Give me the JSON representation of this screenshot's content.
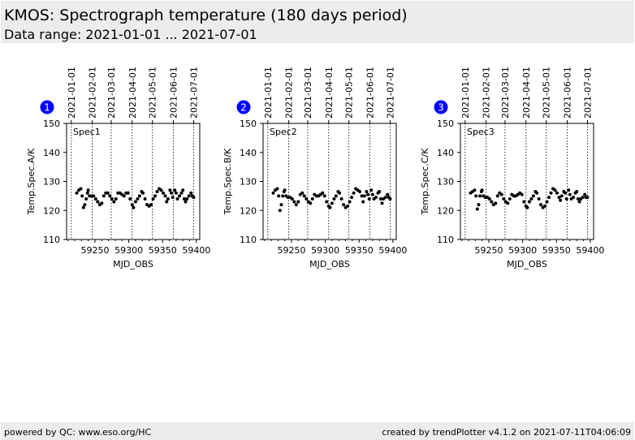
{
  "header": {
    "title": "KMOS: Spectrograph temperature (180 days period)",
    "subtitle": "Data range: 2021-01-01 ... 2021-07-01"
  },
  "footer": {
    "left": "powered by QC: www.eso.org/HC",
    "right": "created by trendPlotter v4.1.2 on 2021-07-11T04:06:09"
  },
  "colors": {
    "badge": "#0000ff",
    "points": "#000000"
  },
  "chart_data": [
    {
      "type": "scatter",
      "badge": "1",
      "label": "Spec1",
      "ylabel": "Temp.Spec.A/K",
      "xlabel": "MJD_OBS",
      "xlim": [
        59208,
        59405
      ],
      "ylim": [
        110,
        150
      ],
      "yticks": [
        110,
        120,
        130,
        140,
        150
      ],
      "xticks": [
        59250,
        59300,
        59350,
        59400
      ],
      "date_ticks": [
        {
          "mjd": 59215,
          "label": "2021-01-01"
        },
        {
          "mjd": 59246,
          "label": "2021-02-01"
        },
        {
          "mjd": 59274,
          "label": "2021-03-01"
        },
        {
          "mjd": 59305,
          "label": "2021-04-01"
        },
        {
          "mjd": 59335,
          "label": "2021-05-01"
        },
        {
          "mjd": 59366,
          "label": "2021-06-01"
        },
        {
          "mjd": 59396,
          "label": "2021-07-01"
        }
      ],
      "x": [
        59223,
        59226,
        59229,
        59231,
        59233,
        59235,
        59237,
        59239,
        59240,
        59242,
        59245,
        59248,
        59251,
        59254,
        59257,
        59260,
        59263,
        59266,
        59269,
        59272,
        59275,
        59278,
        59281,
        59284,
        59287,
        59290,
        59293,
        59296,
        59299,
        59302,
        59305,
        59307,
        59310,
        59313,
        59316,
        59319,
        59321,
        59324,
        59327,
        59330,
        59333,
        59336,
        59339,
        59342,
        59345,
        59348,
        59351,
        59354,
        59356,
        59358,
        59361,
        59363,
        59365,
        59368,
        59370,
        59372,
        59375,
        59378,
        59380,
        59382,
        59384,
        59386,
        59389,
        59392,
        59394,
        59396
      ],
      "y": [
        126,
        127,
        127.5,
        125,
        121,
        122,
        124,
        126,
        127,
        125,
        125,
        125,
        124,
        123,
        122,
        122.5,
        125,
        126,
        126,
        125,
        124,
        123,
        124,
        126,
        126,
        125.5,
        125,
        126,
        126,
        124,
        122,
        121,
        123,
        124,
        125,
        126.5,
        126,
        124,
        122,
        121.5,
        122,
        124,
        125,
        126.5,
        127.5,
        127,
        126,
        125,
        123,
        124,
        127,
        126,
        124.5,
        127,
        126,
        124,
        125,
        126,
        127,
        124,
        123,
        124,
        125,
        126,
        125,
        124.5
      ]
    },
    {
      "type": "scatter",
      "badge": "2",
      "label": "Spec2",
      "ylabel": "Temp.Spec.B/K",
      "xlabel": "MJD_OBS",
      "xlim": [
        59208,
        59405
      ],
      "ylim": [
        110,
        150
      ],
      "yticks": [
        110,
        120,
        130,
        140,
        150
      ],
      "xticks": [
        59250,
        59300,
        59350,
        59400
      ],
      "date_ticks": [
        {
          "mjd": 59215,
          "label": "2021-01-01"
        },
        {
          "mjd": 59246,
          "label": "2021-02-01"
        },
        {
          "mjd": 59274,
          "label": "2021-03-01"
        },
        {
          "mjd": 59305,
          "label": "2021-04-01"
        },
        {
          "mjd": 59335,
          "label": "2021-05-01"
        },
        {
          "mjd": 59366,
          "label": "2021-06-01"
        },
        {
          "mjd": 59396,
          "label": "2021-07-01"
        }
      ],
      "x": [
        59223,
        59226,
        59229,
        59231,
        59233,
        59235,
        59237,
        59239,
        59240,
        59242,
        59245,
        59248,
        59251,
        59254,
        59257,
        59260,
        59263,
        59266,
        59269,
        59272,
        59275,
        59278,
        59281,
        59284,
        59287,
        59290,
        59293,
        59296,
        59299,
        59302,
        59305,
        59307,
        59310,
        59313,
        59316,
        59319,
        59321,
        59324,
        59327,
        59330,
        59333,
        59336,
        59339,
        59342,
        59345,
        59348,
        59351,
        59354,
        59356,
        59358,
        59361,
        59363,
        59365,
        59368,
        59370,
        59372,
        59375,
        59378,
        59380,
        59382,
        59384,
        59386,
        59389,
        59392,
        59394,
        59396
      ],
      "y": [
        126,
        127,
        127.5,
        125,
        120,
        122,
        125,
        126.5,
        127,
        125,
        124.5,
        124.5,
        124,
        123,
        122,
        123,
        125.5,
        126,
        125,
        124,
        123,
        122.5,
        124,
        125.5,
        125,
        125,
        125.5,
        126,
        125,
        123,
        121.5,
        121,
        122.5,
        124,
        125,
        126.5,
        126,
        124,
        122,
        121,
        121.5,
        123,
        124.5,
        126,
        127.5,
        127,
        126.5,
        125,
        123,
        125,
        126.5,
        125.5,
        124,
        127,
        125.5,
        124,
        124.5,
        126,
        126.5,
        124,
        122.5,
        124,
        124.5,
        125.5,
        124.5,
        124
      ]
    },
    {
      "type": "scatter",
      "badge": "3",
      "label": "Spec3",
      "ylabel": "Temp.Spec.C/K",
      "xlabel": "MJD_OBS",
      "xlim": [
        59208,
        59405
      ],
      "ylim": [
        110,
        150
      ],
      "yticks": [
        110,
        120,
        130,
        140,
        150
      ],
      "xticks": [
        59250,
        59300,
        59350,
        59400
      ],
      "date_ticks": [
        {
          "mjd": 59215,
          "label": "2021-01-01"
        },
        {
          "mjd": 59246,
          "label": "2021-02-01"
        },
        {
          "mjd": 59274,
          "label": "2021-03-01"
        },
        {
          "mjd": 59305,
          "label": "2021-04-01"
        },
        {
          "mjd": 59335,
          "label": "2021-05-01"
        },
        {
          "mjd": 59366,
          "label": "2021-06-01"
        },
        {
          "mjd": 59396,
          "label": "2021-07-01"
        }
      ],
      "x": [
        59223,
        59226,
        59229,
        59231,
        59233,
        59235,
        59237,
        59239,
        59240,
        59242,
        59245,
        59248,
        59251,
        59254,
        59257,
        59260,
        59263,
        59266,
        59269,
        59272,
        59275,
        59278,
        59281,
        59284,
        59287,
        59290,
        59293,
        59296,
        59299,
        59302,
        59305,
        59307,
        59310,
        59313,
        59316,
        59319,
        59321,
        59324,
        59327,
        59330,
        59333,
        59336,
        59339,
        59342,
        59345,
        59348,
        59351,
        59354,
        59356,
        59358,
        59361,
        59363,
        59365,
        59368,
        59370,
        59372,
        59375,
        59378,
        59380,
        59382,
        59384,
        59386,
        59389,
        59392,
        59394,
        59396
      ],
      "y": [
        126,
        126.5,
        127,
        125,
        120.5,
        122,
        125,
        126.5,
        127,
        125,
        124.5,
        124.5,
        124,
        123,
        122,
        122.5,
        125,
        126,
        125.5,
        124,
        123,
        122.5,
        124,
        125.5,
        125,
        125,
        125.5,
        126,
        125.5,
        123,
        121.5,
        121,
        123,
        124,
        125,
        126.5,
        126,
        124,
        122,
        121,
        121.5,
        123,
        124.5,
        126,
        127.5,
        127,
        126,
        124.5,
        123.5,
        125,
        126.5,
        126,
        124,
        127,
        125.5,
        124,
        124.5,
        126,
        126.5,
        124,
        123,
        124,
        124.5,
        125.5,
        124.5,
        124.5
      ]
    }
  ]
}
